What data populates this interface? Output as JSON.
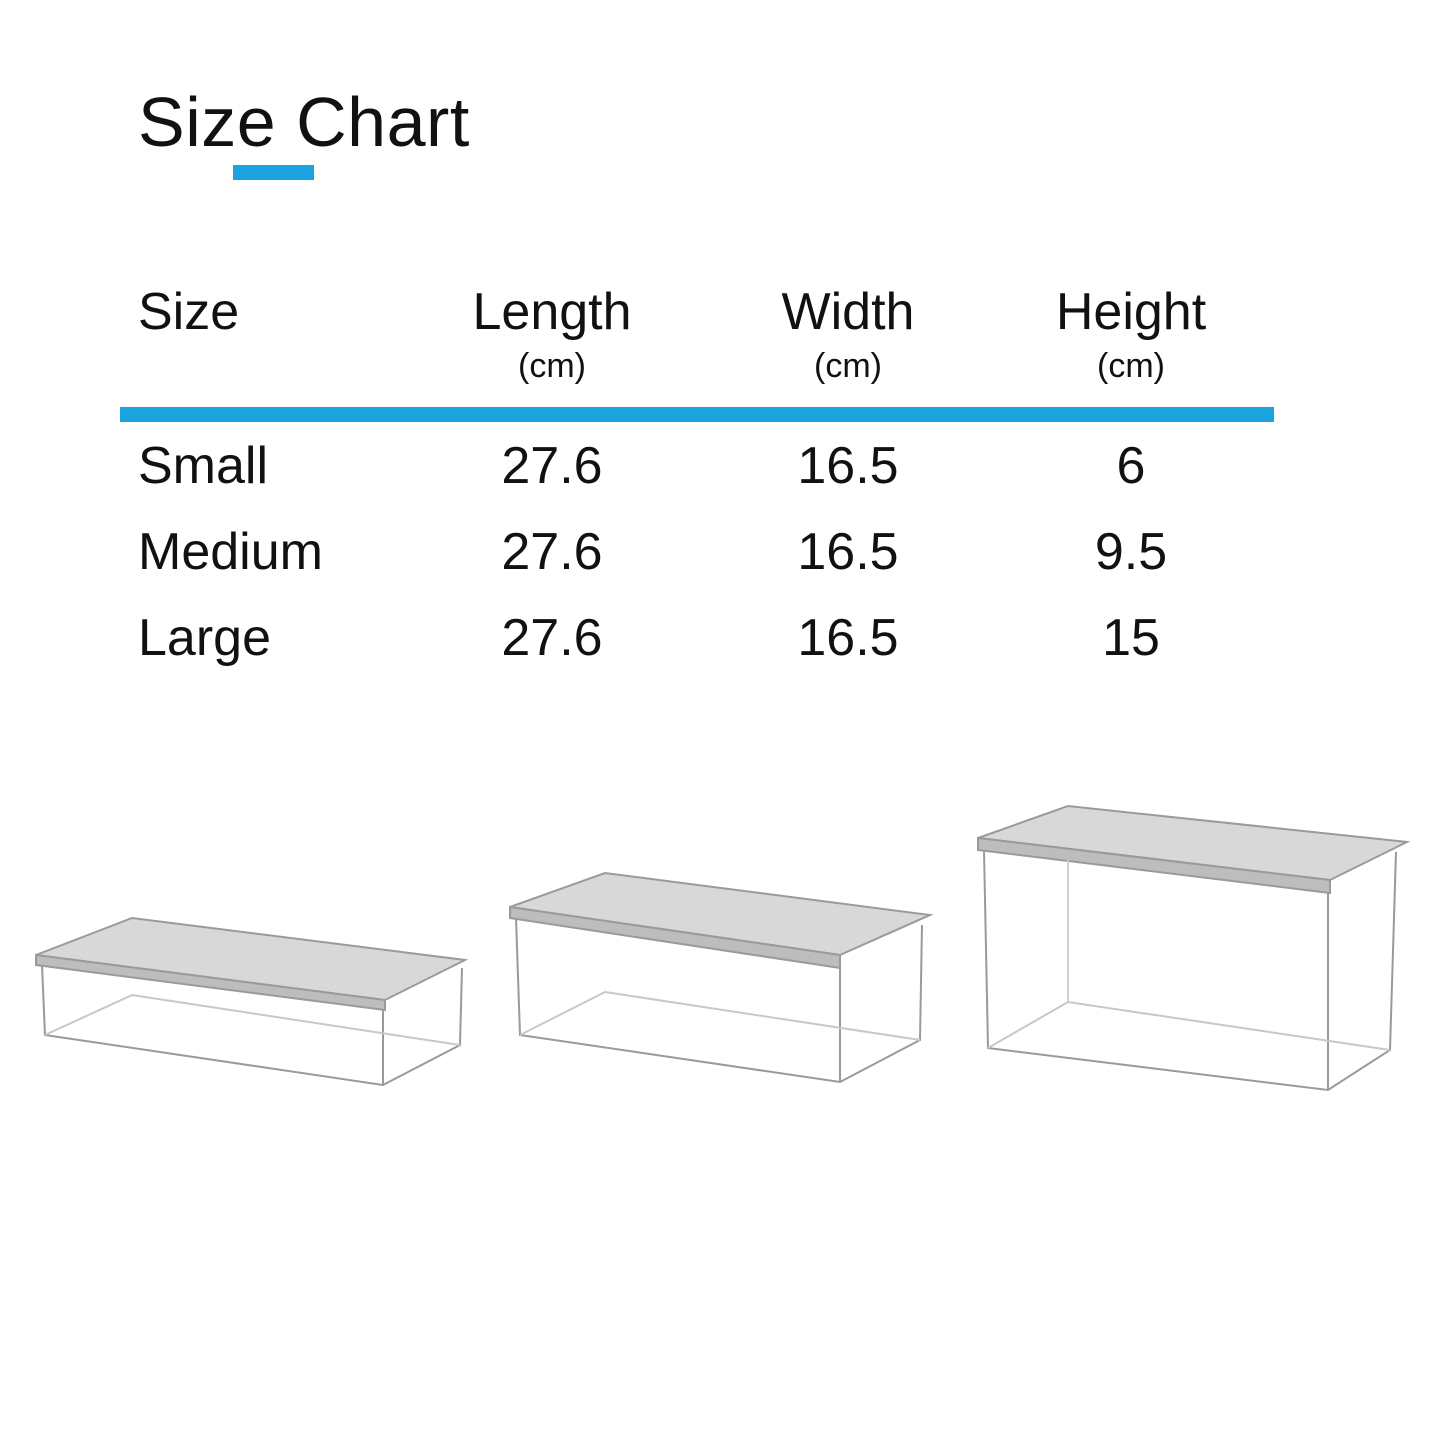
{
  "title": "Size Chart",
  "accent_color": "#1ba3e0",
  "table": {
    "headers": [
      {
        "label": "Size",
        "unit": ""
      },
      {
        "label": "Length",
        "unit": "(cm)"
      },
      {
        "label": "Width",
        "unit": "(cm)"
      },
      {
        "label": "Height",
        "unit": "(cm)"
      }
    ],
    "rows": [
      {
        "size": "Small",
        "length": "27.6",
        "width": "16.5",
        "height": "6"
      },
      {
        "size": "Medium",
        "length": "27.6",
        "width": "16.5",
        "height": "9.5"
      },
      {
        "size": "Large",
        "length": "27.6",
        "width": "16.5",
        "height": "15"
      }
    ]
  },
  "product_images": [
    "small-box",
    "medium-box",
    "large-box"
  ]
}
